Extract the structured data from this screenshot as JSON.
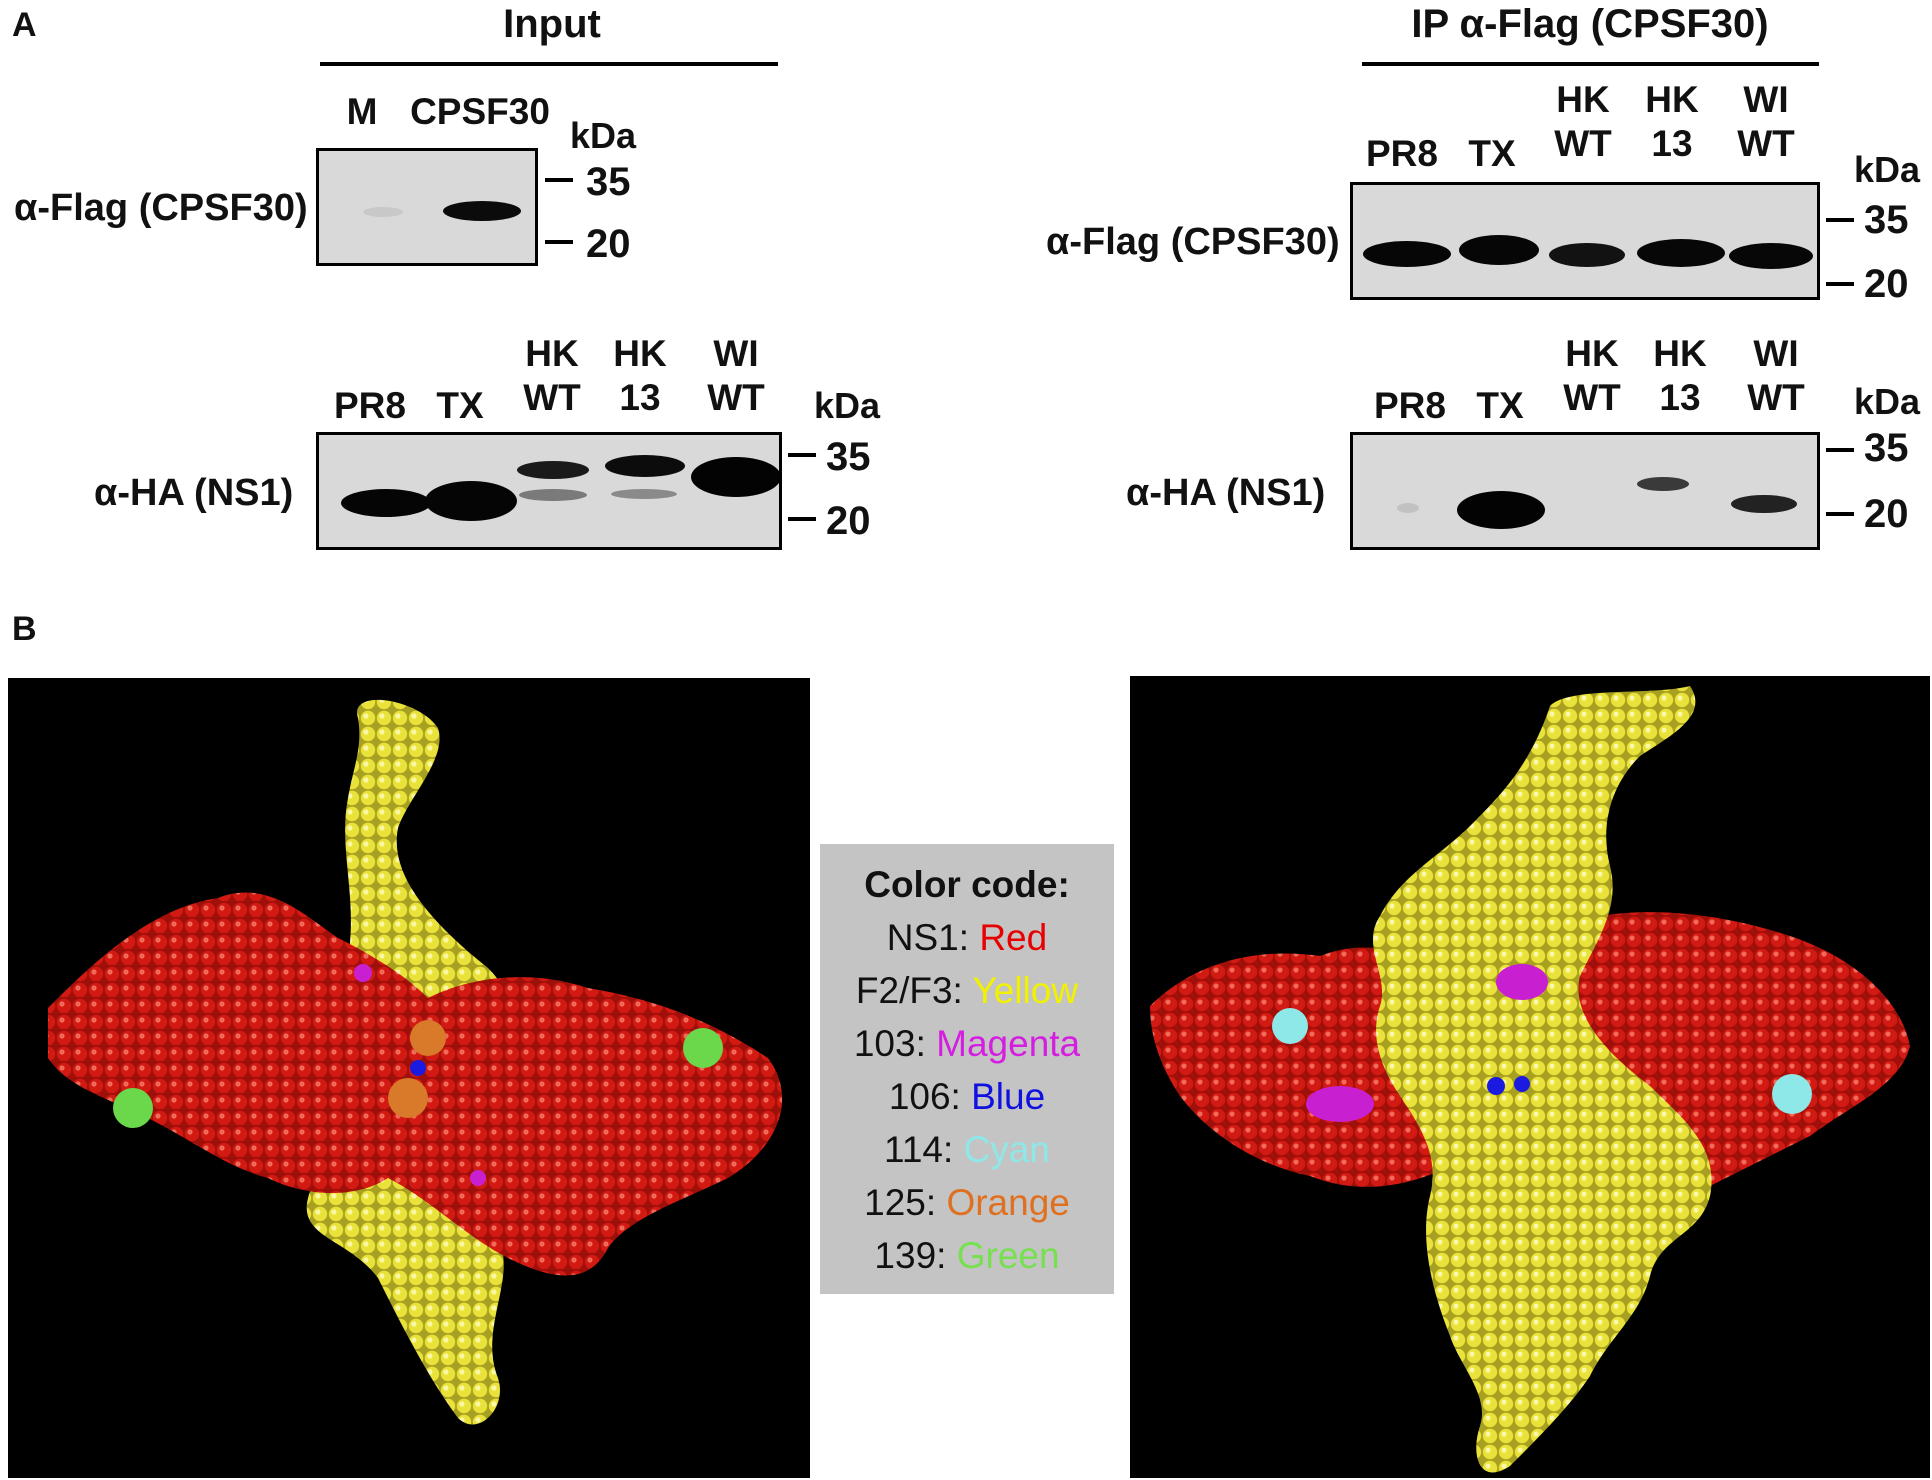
{
  "panel_labels": {
    "a": "A",
    "b": "B"
  },
  "input": {
    "header": "Input",
    "top_blot": {
      "antibody": "α-Flag (CPSF30)",
      "lanes": [
        "M",
        "CPSF30"
      ],
      "kda_label": "kDa",
      "markers": [
        "35",
        "20"
      ]
    },
    "bottom_blot": {
      "antibody": "α-HA (NS1)",
      "lanes": [
        "PR8",
        "TX",
        "HK\nWT",
        "HK\n13",
        "WI\nWT"
      ],
      "kda_label": "kDa",
      "markers": [
        "35",
        "20"
      ]
    }
  },
  "ip": {
    "header": "IP α-Flag (CPSF30)",
    "top_blot": {
      "antibody": "α-Flag (CPSF30)",
      "lanes": [
        "PR8",
        "TX",
        "HK\nWT",
        "HK\n13",
        "WI\nWT"
      ],
      "kda_label": "kDa",
      "markers": [
        "35",
        "20"
      ]
    },
    "bottom_blot": {
      "antibody": "α-HA (NS1)",
      "lanes": [
        "PR8",
        "TX",
        "HK\nWT",
        "HK\n13",
        "WI\nWT"
      ],
      "kda_label": "kDa",
      "markers": [
        "35",
        "20"
      ]
    }
  },
  "legend": {
    "title": "Color code:",
    "entries": [
      {
        "key": "NS1:",
        "value": "Red",
        "color": "#e60000"
      },
      {
        "key": "F2/F3:",
        "value": "Yellow",
        "color": "#f2f200"
      },
      {
        "key": "103:",
        "value": "Magenta",
        "color": "#d41ee0"
      },
      {
        "key": "106:",
        "value": "Blue",
        "color": "#1010e0"
      },
      {
        "key": "114:",
        "value": "Cyan",
        "color": "#8ee8e8"
      },
      {
        "key": "125:",
        "value": "Orange",
        "color": "#e07020"
      },
      {
        "key": "139:",
        "value": "Green",
        "color": "#77e050"
      }
    ]
  },
  "colors": {
    "ns1": "#d21a12",
    "f2f3": "#e8e23a",
    "magenta": "#c820d0",
    "blue": "#1a1ae0",
    "cyan": "#8ee8e8",
    "orange": "#d87a2a",
    "green": "#6ad84a",
    "molecule_background": "#000000",
    "legend_background": "#c4c4c4"
  }
}
